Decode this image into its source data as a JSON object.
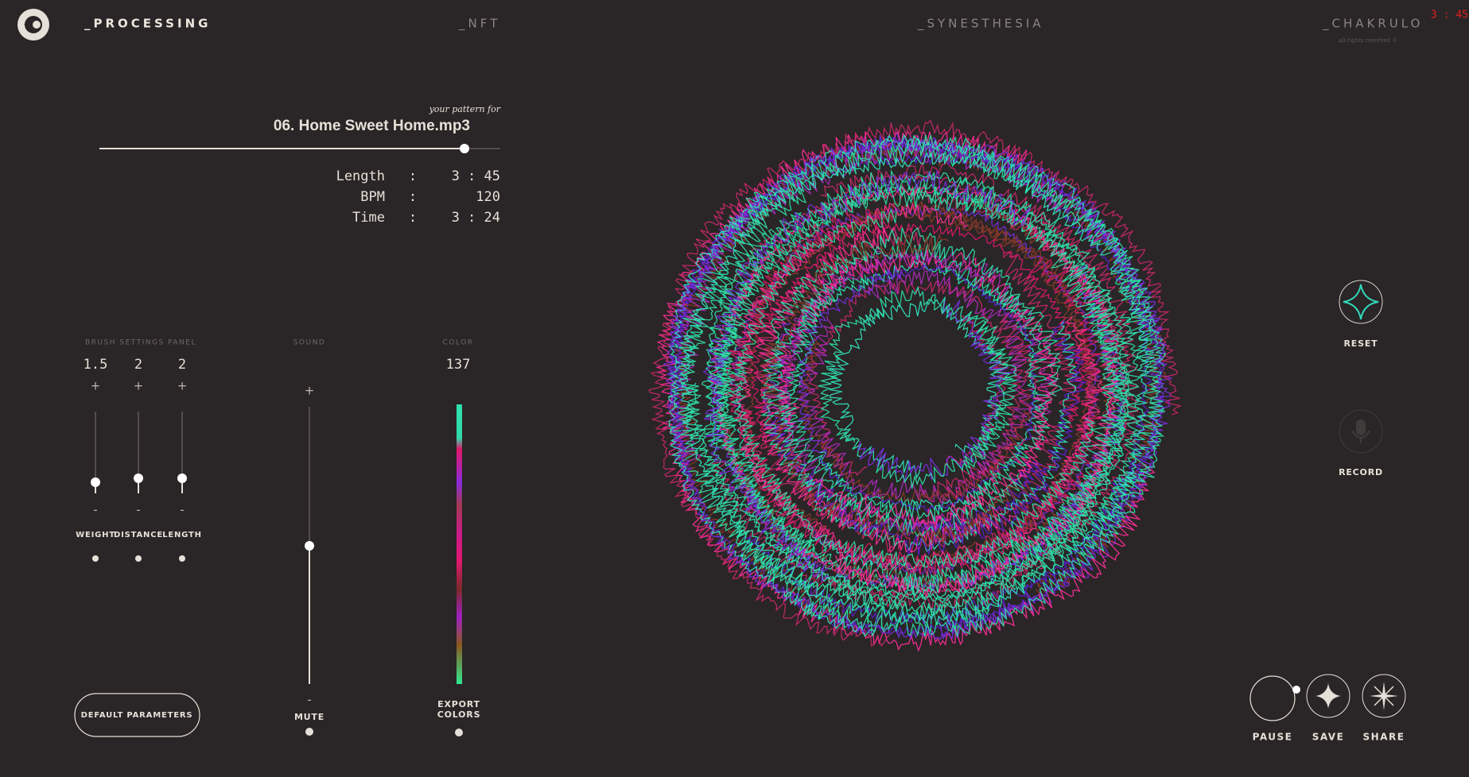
{
  "nav": [
    "_PROCESSING",
    "_NFT",
    "_SYNESTHESIA",
    "_CHAKRULO"
  ],
  "copyright": "all rights reserved ©",
  "clock": "3 : 45",
  "track": {
    "caption": "your pattern for",
    "name": "06. Home Sweet Home.mp3",
    "info": [
      [
        "Length",
        ":",
        "3 : 45"
      ],
      [
        "BPM",
        ":",
        120
      ],
      [
        "Time",
        ":",
        "3 : 24"
      ]
    ]
  },
  "brush": {
    "title": "BRUSH SETTINGS PANEL",
    "controls": [
      {
        "value": 1.5,
        "plus": "+",
        "minus": "-",
        "label": "WEIGHT"
      },
      {
        "value": 2,
        "plus": "+",
        "minus": "-",
        "label": "DISTANCE"
      },
      {
        "value": 2,
        "plus": "+",
        "minus": "-",
        "label": "LENGTH"
      }
    ]
  },
  "sound": {
    "title": "SOUND",
    "plus": "+",
    "minus": "-",
    "label": "MUTE"
  },
  "color": {
    "title": "COLOR",
    "value": 137,
    "label": [
      "EXPORT",
      "COLORS"
    ]
  },
  "default_button": "DEFAULT PARAMETERS",
  "side": {
    "reset": "RESET",
    "record": "RECORD"
  },
  "actions": [
    "PAUSE",
    "SAVE",
    "SHARE"
  ]
}
